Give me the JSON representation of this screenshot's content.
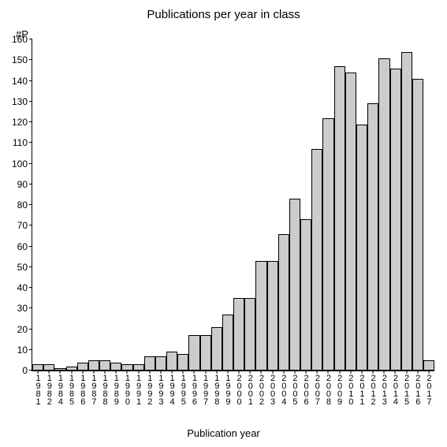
{
  "chart": {
    "type": "bar",
    "title": "Publications per year in class",
    "ylabel": "#P",
    "xlabel": "Publication year",
    "title_fontsize": 15,
    "label_fontsize": 13,
    "tick_fontsize": 12,
    "background_color": "#ffffff",
    "bar_fill": "#cccccc",
    "bar_border": "#000000",
    "axis_color": "#000000",
    "ylim": [
      0,
      160
    ],
    "ytick_step": 10,
    "yticks": [
      0,
      10,
      20,
      30,
      40,
      50,
      60,
      70,
      80,
      90,
      100,
      110,
      120,
      130,
      140,
      150,
      160
    ],
    "categories": [
      "1981",
      "1982",
      "1984",
      "1985",
      "1986",
      "1987",
      "1988",
      "1989",
      "1990",
      "1991",
      "1992",
      "1993",
      "1994",
      "1995",
      "1996",
      "1997",
      "1998",
      "1999",
      "2000",
      "2001",
      "2002",
      "2003",
      "2004",
      "2005",
      "2006",
      "2007",
      "2008",
      "2009",
      "2010",
      "2011",
      "2012",
      "2013",
      "2014",
      "2015",
      "2016",
      "2017"
    ],
    "values": [
      3,
      3,
      1,
      2,
      4,
      5,
      5,
      4,
      3,
      3,
      7,
      7,
      9,
      8,
      17,
      17,
      21,
      27,
      35,
      35,
      53,
      53,
      66,
      83,
      73,
      107,
      122,
      147,
      144,
      119,
      129,
      151,
      146,
      154,
      141,
      5
    ]
  }
}
